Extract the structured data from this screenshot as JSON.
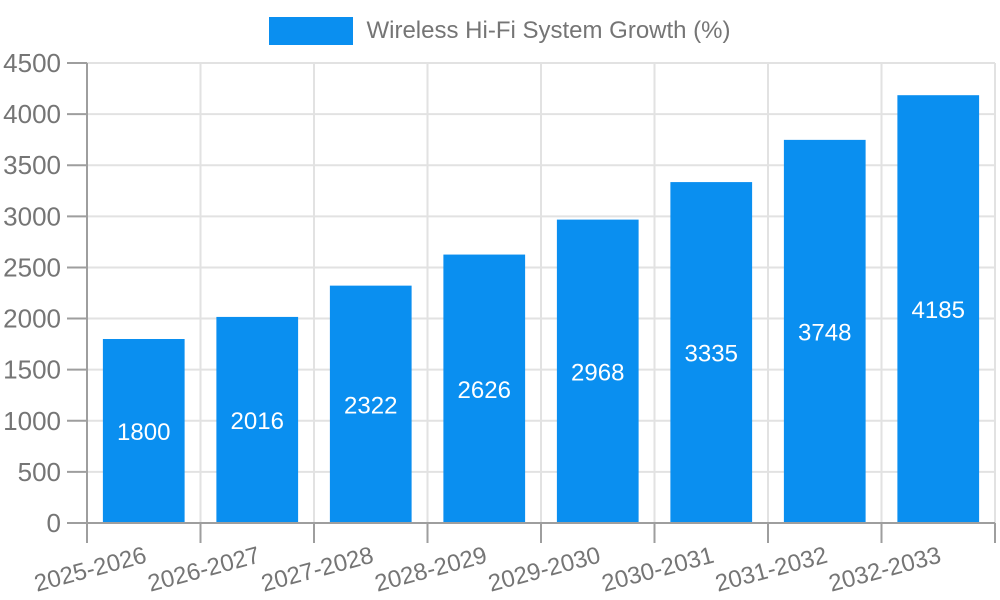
{
  "chart_data": {
    "type": "bar",
    "title": "Wireless Hi-Fi System Growth (%)",
    "categories": [
      "2025-2026",
      "2026-2027",
      "2027-2028",
      "2028-2029",
      "2029-2030",
      "2030-2031",
      "2031-2032",
      "2032-2033"
    ],
    "series": [
      {
        "name": "Wireless Hi-Fi System Growth (%)",
        "values": [
          1800,
          2016,
          2322,
          2626,
          2968,
          3335,
          3748,
          4185
        ]
      }
    ],
    "xlabel": "",
    "ylabel": "",
    "ylim": [
      0,
      4500
    ],
    "ytick_step": 500,
    "yticks": [
      0,
      500,
      1000,
      1500,
      2000,
      2500,
      3000,
      3500,
      4000,
      4500
    ],
    "grid": true,
    "legend_position": "top-center",
    "bar_value_labels_shown": true,
    "x_tick_rotation_deg": -15,
    "colors": {
      "bar": "#0a8ff0",
      "value_label": "#ffffff",
      "tick_label": "#757575",
      "legend_label": "#757575",
      "grid_line": "#e2e2e2",
      "axis_line": "#9e9e9e",
      "background": "#ffffff"
    }
  },
  "legend": {
    "label": "Wireless Hi-Fi System Growth (%)"
  }
}
